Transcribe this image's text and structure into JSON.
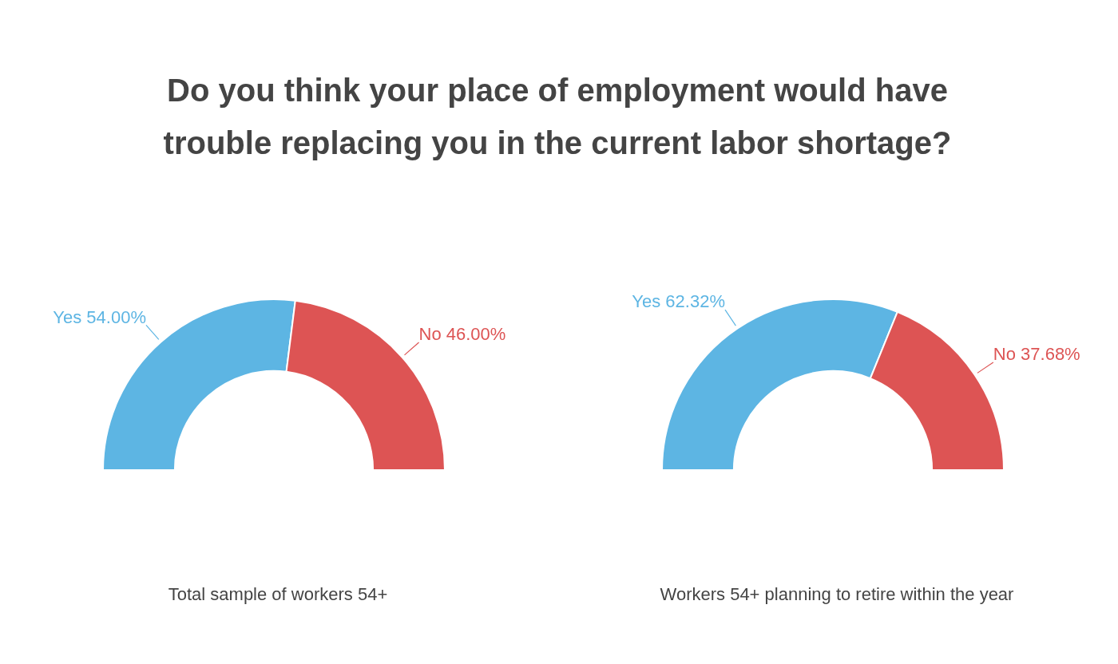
{
  "chart_data": [
    {
      "type": "donut",
      "title": "Do you think your place of employment would have trouble replacing you in the current labor shortage?",
      "xlabel": "Total sample of workers 54+",
      "categories": [
        "Yes",
        "No"
      ],
      "values": [
        54,
        46
      ],
      "value_labels": [
        "54.00%",
        "46.00%"
      ],
      "colors": [
        "#5db5e3",
        "#dd5454"
      ],
      "legend": false
    },
    {
      "type": "donut",
      "xlabel": "Workers 54+ planning to retire within the year",
      "categories": [
        "Yes",
        "No"
      ],
      "values": [
        62.32,
        37.68
      ],
      "value_labels": [
        "62.32%",
        "37.68%"
      ],
      "colors": [
        "#5db5e3",
        "#dd5454"
      ],
      "legend": false
    }
  ]
}
